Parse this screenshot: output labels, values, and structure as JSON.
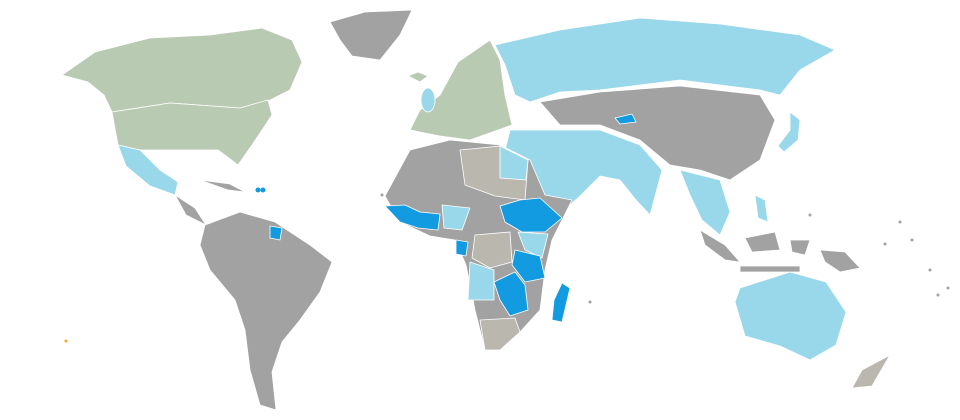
{
  "map": {
    "projection": "world",
    "legend_colors": {
      "category_dark_gray": "#a2a2a2",
      "category_tan_gray": "#bab7ae",
      "category_green": "#b9cab3",
      "category_light_blue": "#99d8ea",
      "category_blue": "#129be0",
      "category_orange": "#f5a623"
    }
  }
}
